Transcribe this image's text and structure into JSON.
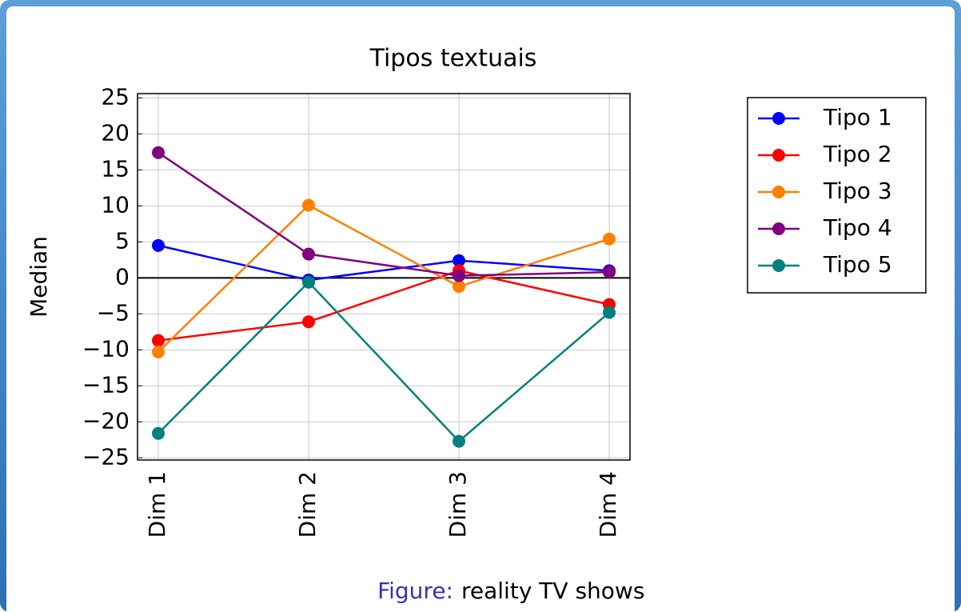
{
  "chart_data": {
    "type": "line",
    "title": "Tipos textuais",
    "ylabel": "Median",
    "categories": [
      "Dim 1",
      "Dim 2",
      "Dim 3",
      "Dim 4"
    ],
    "series": [
      {
        "name": "Tipo 1",
        "color": "#0000ff",
        "values": [
          4.5,
          -0.3,
          2.4,
          1.0
        ]
      },
      {
        "name": "Tipo 2",
        "color": "#ff0000",
        "values": [
          -8.7,
          -6.1,
          1.0,
          -3.7
        ]
      },
      {
        "name": "Tipo 3",
        "color": "#ff8000",
        "values": [
          -10.3,
          10.1,
          -1.2,
          5.4
        ]
      },
      {
        "name": "Tipo 4",
        "color": "#800080",
        "values": [
          17.4,
          3.3,
          0.3,
          0.8
        ]
      },
      {
        "name": "Tipo 5",
        "color": "#008080",
        "values": [
          -21.6,
          -0.6,
          -22.7,
          -4.8
        ]
      }
    ],
    "ylim": [
      -25.3,
      25.6
    ],
    "yticks": [
      {
        "value": -25,
        "label": "−25"
      },
      {
        "value": -20,
        "label": "−20"
      },
      {
        "value": -15,
        "label": "−15"
      },
      {
        "value": -10,
        "label": "−10"
      },
      {
        "value": -5,
        "label": "−5"
      },
      0,
      5,
      10,
      15,
      20,
      25
    ],
    "grid": true,
    "legend": "outside right",
    "caption_label": "Figure:",
    "caption": "reality TV shows"
  }
}
